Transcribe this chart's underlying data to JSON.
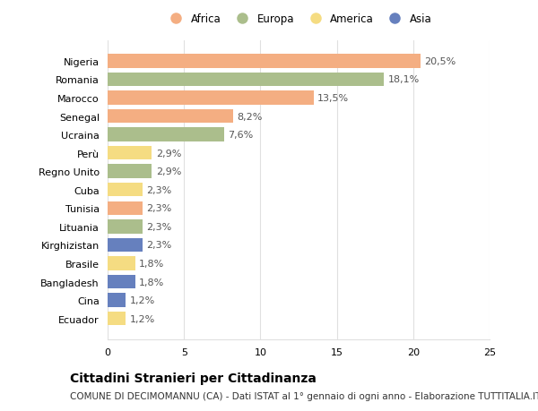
{
  "categories": [
    "Nigeria",
    "Romania",
    "Marocco",
    "Senegal",
    "Ucraina",
    "Perù",
    "Regno Unito",
    "Cuba",
    "Tunisia",
    "Lituania",
    "Kirghizistan",
    "Brasile",
    "Bangladesh",
    "Cina",
    "Ecuador"
  ],
  "values": [
    20.5,
    18.1,
    13.5,
    8.2,
    7.6,
    2.9,
    2.9,
    2.3,
    2.3,
    2.3,
    2.3,
    1.8,
    1.8,
    1.2,
    1.2
  ],
  "labels": [
    "20,5%",
    "18,1%",
    "13,5%",
    "8,2%",
    "7,6%",
    "2,9%",
    "2,9%",
    "2,3%",
    "2,3%",
    "2,3%",
    "2,3%",
    "1,8%",
    "1,8%",
    "1,2%",
    "1,2%"
  ],
  "continents": [
    "Africa",
    "Europa",
    "Africa",
    "Africa",
    "Europa",
    "America",
    "Europa",
    "America",
    "Africa",
    "Europa",
    "Asia",
    "America",
    "Asia",
    "Asia",
    "America"
  ],
  "colors": {
    "Africa": "#F4AE82",
    "Europa": "#ABBE8C",
    "America": "#F5DC82",
    "Asia": "#6680BE"
  },
  "legend_order": [
    "Africa",
    "Europa",
    "America",
    "Asia"
  ],
  "xlim": [
    0,
    25
  ],
  "xticks": [
    0,
    5,
    10,
    15,
    20,
    25
  ],
  "title": "Cittadini Stranieri per Cittadinanza",
  "subtitle": "COMUNE DI DECIMOMANNU (CA) - Dati ISTAT al 1° gennaio di ogni anno - Elaborazione TUTTITALIA.IT",
  "background_color": "#ffffff",
  "grid_color": "#e0e0e0",
  "bar_height": 0.75,
  "title_fontsize": 10,
  "subtitle_fontsize": 7.5,
  "label_fontsize": 8,
  "tick_fontsize": 8,
  "legend_fontsize": 8.5
}
